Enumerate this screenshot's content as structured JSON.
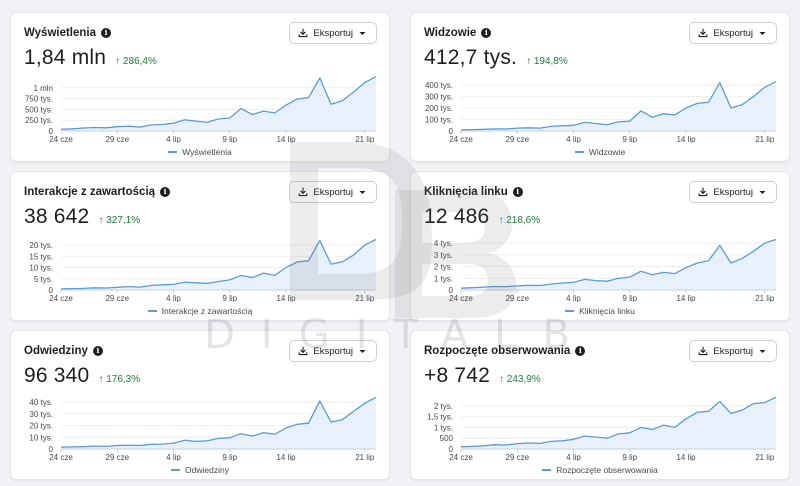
{
  "export_label": "Eksportuj",
  "watermark_text": "DIGITALB",
  "x_tick_labels": [
    "24 cze",
    "29 cze",
    "4 lip",
    "9 lip",
    "14 lip",
    "21 lip"
  ],
  "colors": {
    "line": "#5b9bd9",
    "area": "#e8f1fb",
    "positive": "#1e7d3a",
    "grid": "#e9ebee"
  },
  "cards": [
    {
      "title": "Wyświetlenia",
      "value": "1,84 mln",
      "change": "↑ 286,4%",
      "legend": "Wyświetlenia",
      "chart_data": {
        "type": "area",
        "x": [
          "24 cze",
          "25 cze",
          "26 cze",
          "27 cze",
          "28 cze",
          "29 cze",
          "30 cze",
          "1 lip",
          "2 lip",
          "3 lip",
          "4 lip",
          "5 lip",
          "6 lip",
          "7 lip",
          "8 lip",
          "9 lip",
          "10 lip",
          "11 lip",
          "12 lip",
          "13 lip",
          "14 lip",
          "15 lip",
          "16 lip",
          "17 lip",
          "18 lip",
          "19 lip",
          "20 lip",
          "21 lip",
          "22 lip"
        ],
        "values": [
          40000,
          50000,
          70000,
          80000,
          75000,
          100000,
          110000,
          90000,
          140000,
          150000,
          180000,
          260000,
          230000,
          200000,
          280000,
          300000,
          520000,
          380000,
          460000,
          420000,
          600000,
          740000,
          770000,
          1230000,
          620000,
          700000,
          900000,
          1120000,
          1260000
        ],
        "y_ticks": [
          "0",
          "250 tys.",
          "500 tys.",
          "750 tys.",
          "1 mln"
        ],
        "ylim": [
          0,
          1250000
        ],
        "xlabel": "",
        "ylabel": ""
      }
    },
    {
      "title": "Widzowie",
      "value": "412,7 tys.",
      "change": "↑ 194,8%",
      "legend": "Widzowie",
      "chart_data": {
        "type": "area",
        "x": [
          "24 cze",
          "25 cze",
          "26 cze",
          "27 cze",
          "28 cze",
          "29 cze",
          "30 cze",
          "1 lip",
          "2 lip",
          "3 lip",
          "4 lip",
          "5 lip",
          "6 lip",
          "7 lip",
          "8 lip",
          "9 lip",
          "10 lip",
          "11 lip",
          "12 lip",
          "13 lip",
          "14 lip",
          "15 lip",
          "16 lip",
          "17 lip",
          "18 lip",
          "19 lip",
          "20 lip",
          "21 lip",
          "22 lip"
        ],
        "values": [
          10000,
          12000,
          15000,
          18000,
          17000,
          25000,
          28000,
          25000,
          40000,
          45000,
          50000,
          75000,
          65000,
          55000,
          80000,
          85000,
          175000,
          120000,
          150000,
          140000,
          200000,
          240000,
          250000,
          420000,
          200000,
          230000,
          300000,
          380000,
          430000
        ],
        "y_ticks": [
          "0",
          "100 tys.",
          "200 tys.",
          "300 tys.",
          "400 tys."
        ],
        "ylim": [
          0,
          470000
        ],
        "xlabel": "",
        "ylabel": ""
      }
    },
    {
      "title": "Interakcje z zawartością",
      "value": "38 642",
      "change": "↑ 327,1%",
      "legend": "Interakcje z zawartością",
      "chart_data": {
        "type": "area",
        "x": [
          "24 cze",
          "25 cze",
          "26 cze",
          "27 cze",
          "28 cze",
          "29 cze",
          "30 cze",
          "1 lip",
          "2 lip",
          "3 lip",
          "4 lip",
          "5 lip",
          "6 lip",
          "7 lip",
          "8 lip",
          "9 lip",
          "10 lip",
          "11 lip",
          "12 lip",
          "13 lip",
          "14 lip",
          "15 lip",
          "16 lip",
          "17 lip",
          "18 lip",
          "19 lip",
          "20 lip",
          "21 lip",
          "22 lip"
        ],
        "values": [
          500,
          600,
          700,
          1000,
          900,
          1200,
          1500,
          1300,
          2000,
          2300,
          2500,
          3500,
          3200,
          3000,
          3800,
          4500,
          6500,
          5500,
          7500,
          6500,
          10000,
          12500,
          13000,
          22000,
          11500,
          12500,
          15500,
          20000,
          22500
        ],
        "y_ticks": [
          "0",
          "5 tys.",
          "10 tys.",
          "15 tys.",
          "20 tys."
        ],
        "ylim": [
          0,
          24000
        ],
        "xlabel": "",
        "ylabel": ""
      }
    },
    {
      "title": "Kliknięcia linku",
      "value": "12 486",
      "change": "↑ 218,6%",
      "legend": "Kliknięcia linku",
      "chart_data": {
        "type": "area",
        "x": [
          "24 cze",
          "25 cze",
          "26 cze",
          "27 cze",
          "28 cze",
          "29 cze",
          "30 cze",
          "1 lip",
          "2 lip",
          "3 lip",
          "4 lip",
          "5 lip",
          "6 lip",
          "7 lip",
          "8 lip",
          "9 lip",
          "10 lip",
          "11 lip",
          "12 lip",
          "13 lip",
          "14 lip",
          "15 lip",
          "16 lip",
          "17 lip",
          "18 lip",
          "19 lip",
          "20 lip",
          "21 lip",
          "22 lip"
        ],
        "values": [
          150,
          200,
          250,
          300,
          280,
          350,
          400,
          380,
          500,
          600,
          650,
          900,
          800,
          750,
          1000,
          1100,
          1600,
          1300,
          1500,
          1400,
          1900,
          2300,
          2500,
          3800,
          2300,
          2700,
          3300,
          4000,
          4300
        ],
        "y_ticks": [
          "0",
          "1 tys.",
          "2 tys.",
          "3 tys.",
          "4 tys."
        ],
        "ylim": [
          0,
          4600
        ],
        "xlabel": "",
        "ylabel": ""
      }
    },
    {
      "title": "Odwiedziny",
      "value": "96 340",
      "change": "↑ 176,3%",
      "legend": "Odwiedziny",
      "chart_data": {
        "type": "area",
        "x": [
          "24 cze",
          "25 cze",
          "26 cze",
          "27 cze",
          "28 cze",
          "29 cze",
          "30 cze",
          "1 lip",
          "2 lip",
          "3 lip",
          "4 lip",
          "5 lip",
          "6 lip",
          "7 lip",
          "8 lip",
          "9 lip",
          "10 lip",
          "11 lip",
          "12 lip",
          "13 lip",
          "14 lip",
          "15 lip",
          "16 lip",
          "17 lip",
          "18 lip",
          "19 lip",
          "20 lip",
          "21 lip",
          "22 lip"
        ],
        "values": [
          1500,
          1800,
          2000,
          2500,
          2200,
          3000,
          3200,
          3000,
          4000,
          4200,
          5000,
          7500,
          6500,
          7000,
          9000,
          9500,
          13000,
          11000,
          14000,
          12500,
          18000,
          21000,
          22000,
          41000,
          23000,
          25000,
          32000,
          39000,
          44000
        ],
        "y_ticks": [
          "0",
          "10 tys.",
          "20 tys.",
          "30 tys.",
          "40 tys."
        ],
        "ylim": [
          0,
          46000
        ],
        "xlabel": "",
        "ylabel": ""
      }
    },
    {
      "title": "Rozpoczęte obserwowania",
      "value": "+8 742",
      "change": "↑ 243,9%",
      "legend": "Rozpoczęte obserwowania",
      "chart_data": {
        "type": "area",
        "x": [
          "24 cze",
          "25 cze",
          "26 cze",
          "27 cze",
          "28 cze",
          "29 cze",
          "30 cze",
          "1 lip",
          "2 lip",
          "3 lip",
          "4 lip",
          "5 lip",
          "6 lip",
          "7 lip",
          "8 lip",
          "9 lip",
          "10 lip",
          "11 lip",
          "12 lip",
          "13 lip",
          "14 lip",
          "15 lip",
          "16 lip",
          "17 lip",
          "18 lip",
          "19 lip",
          "20 lip",
          "21 lip",
          "22 lip"
        ],
        "values": [
          100,
          120,
          150,
          200,
          180,
          250,
          280,
          260,
          350,
          380,
          450,
          600,
          550,
          500,
          700,
          750,
          1000,
          900,
          1100,
          1000,
          1400,
          1700,
          1750,
          2200,
          1650,
          1800,
          2100,
          2150,
          2400
        ],
        "y_ticks": [
          "0",
          "500",
          "1 tys.",
          "1,5 tys.",
          "2 tys."
        ],
        "ylim": [
          0,
          2500
        ],
        "xlabel": "",
        "ylabel": ""
      }
    }
  ]
}
